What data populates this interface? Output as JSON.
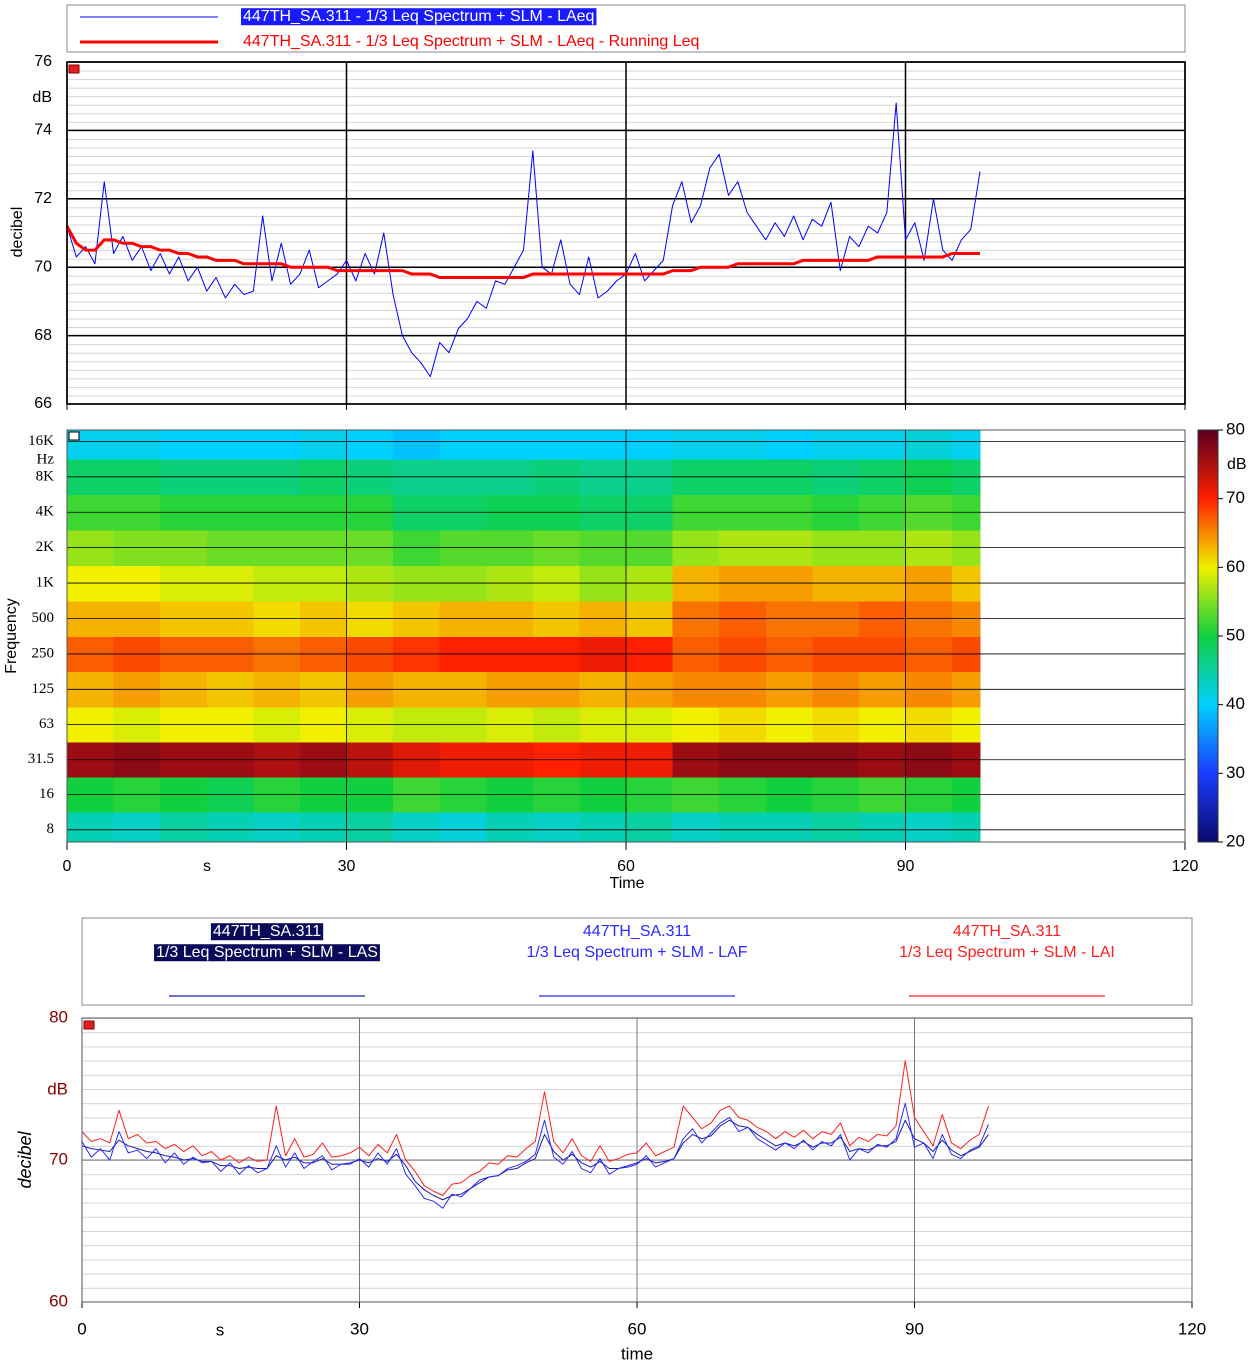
{
  "chart_data": [
    {
      "type": "line",
      "x": [
        0,
        1,
        2,
        3,
        4,
        5,
        6,
        7,
        8,
        9,
        10,
        11,
        12,
        13,
        14,
        15,
        16,
        17,
        18,
        19,
        20,
        21,
        22,
        23,
        24,
        25,
        26,
        27,
        28,
        29,
        30,
        31,
        32,
        33,
        34,
        35,
        36,
        37,
        38,
        39,
        40,
        41,
        42,
        43,
        44,
        45,
        46,
        47,
        48,
        49,
        50,
        51,
        52,
        53,
        54,
        55,
        56,
        57,
        58,
        59,
        60,
        61,
        62,
        63,
        64,
        65,
        66,
        67,
        68,
        69,
        70,
        71,
        72,
        73,
        74,
        75,
        76,
        77,
        78,
        79,
        80,
        81,
        82,
        83,
        84,
        85,
        86,
        87,
        88,
        89,
        90,
        91,
        92,
        93,
        94,
        95,
        96,
        97,
        98
      ],
      "series": [
        {
          "name": "447TH_SA.311 - 1/3 Leq Spectrum + SLM - LAeq",
          "color": "#0000ff",
          "line_width": 1,
          "values": [
            71.2,
            70.3,
            70.6,
            70.1,
            72.5,
            70.4,
            70.9,
            70.2,
            70.6,
            69.9,
            70.4,
            69.8,
            70.3,
            69.6,
            70.0,
            69.3,
            69.7,
            69.1,
            69.5,
            69.2,
            69.3,
            71.5,
            69.6,
            70.7,
            69.5,
            69.8,
            70.5,
            69.4,
            69.6,
            69.8,
            70.2,
            69.6,
            70.4,
            69.8,
            71.0,
            69.2,
            68.0,
            67.5,
            67.2,
            66.8,
            67.8,
            67.5,
            68.2,
            68.5,
            69.0,
            68.8,
            69.6,
            69.5,
            70.0,
            70.5,
            73.4,
            70.0,
            69.8,
            70.8,
            69.5,
            69.2,
            70.3,
            69.1,
            69.3,
            69.6,
            69.8,
            70.4,
            69.6,
            69.9,
            70.2,
            71.8,
            72.5,
            71.3,
            71.8,
            72.9,
            73.3,
            72.1,
            72.5,
            71.6,
            71.2,
            70.8,
            71.3,
            70.9,
            71.5,
            70.8,
            71.4,
            71.2,
            71.9,
            69.9,
            70.9,
            70.6,
            71.2,
            71.0,
            71.6,
            74.8,
            70.8,
            71.3,
            70.2,
            72.0,
            70.5,
            70.2,
            70.8,
            71.1,
            72.8
          ]
        },
        {
          "name": "447TH_SA.311 - 1/3 Leq Spectrum + SLM - LAeq - Running Leq",
          "color": "#ff0000",
          "line_width": 3,
          "values": [
            71.2,
            70.7,
            70.5,
            70.5,
            70.8,
            70.8,
            70.7,
            70.7,
            70.6,
            70.6,
            70.5,
            70.5,
            70.4,
            70.4,
            70.3,
            70.3,
            70.2,
            70.2,
            70.2,
            70.1,
            70.1,
            70.1,
            70.1,
            70.1,
            70.0,
            70.0,
            70.0,
            70.0,
            70.0,
            69.9,
            69.9,
            69.9,
            69.9,
            69.9,
            69.9,
            69.9,
            69.9,
            69.8,
            69.8,
            69.8,
            69.7,
            69.7,
            69.7,
            69.7,
            69.7,
            69.7,
            69.7,
            69.7,
            69.7,
            69.7,
            69.8,
            69.8,
            69.8,
            69.8,
            69.8,
            69.8,
            69.8,
            69.8,
            69.8,
            69.8,
            69.8,
            69.8,
            69.8,
            69.8,
            69.8,
            69.9,
            69.9,
            69.9,
            70.0,
            70.0,
            70.0,
            70.0,
            70.1,
            70.1,
            70.1,
            70.1,
            70.1,
            70.1,
            70.1,
            70.2,
            70.2,
            70.2,
            70.2,
            70.2,
            70.2,
            70.2,
            70.2,
            70.3,
            70.3,
            70.3,
            70.3,
            70.3,
            70.3,
            70.3,
            70.3,
            70.4,
            70.4,
            70.4,
            70.4
          ]
        }
      ],
      "xlim": [
        0,
        120
      ],
      "xticks": [
        0,
        30,
        60,
        90,
        120
      ],
      "ylim": [
        66,
        76
      ],
      "yticks": [
        66,
        68,
        70,
        72,
        74,
        76
      ],
      "y_unit": "dB",
      "y_label": "decibel",
      "grid": true
    },
    {
      "type": "heatmap",
      "x_bins": [
        0,
        5,
        10,
        15,
        20,
        25,
        30,
        35,
        40,
        45,
        50,
        55,
        60,
        65,
        70,
        75,
        80,
        85,
        90,
        95,
        98
      ],
      "y": [
        8,
        16,
        31.5,
        63,
        125,
        250,
        500,
        1000,
        2000,
        4000,
        8000,
        16000
      ],
      "z": [
        [
          44,
          43,
          45,
          44,
          43,
          44,
          45,
          43,
          42,
          44,
          43,
          44,
          45,
          43,
          44,
          44,
          45,
          44,
          43,
          44
        ],
        [
          50,
          51,
          50,
          49,
          51,
          50,
          50,
          52,
          51,
          50,
          51,
          50,
          51,
          52,
          51,
          50,
          51,
          52,
          51,
          50
        ],
        [
          76,
          77,
          76,
          76,
          75,
          76,
          74,
          72,
          71,
          71,
          70,
          71,
          71,
          76,
          77,
          77,
          77,
          76,
          77,
          76
        ],
        [
          60,
          59,
          60,
          60,
          59,
          60,
          59,
          58,
          58,
          59,
          58,
          59,
          59,
          60,
          61,
          60,
          61,
          60,
          61,
          60
        ],
        [
          63,
          64,
          63,
          62,
          63,
          62,
          64,
          63,
          63,
          64,
          64,
          63,
          64,
          65,
          65,
          64,
          65,
          64,
          65,
          64
        ],
        [
          67,
          68,
          67,
          67,
          66,
          67,
          68,
          69,
          70,
          70,
          70,
          71,
          70,
          67,
          68,
          67,
          68,
          68,
          67,
          68
        ],
        [
          63,
          63,
          62,
          62,
          61,
          62,
          61,
          62,
          63,
          63,
          62,
          63,
          62,
          66,
          67,
          66,
          66,
          67,
          66,
          65
        ],
        [
          60,
          60,
          59,
          59,
          58,
          58,
          57,
          56,
          56,
          57,
          58,
          56,
          57,
          63,
          64,
          64,
          63,
          63,
          64,
          62
        ],
        [
          56,
          55,
          55,
          54,
          54,
          54,
          54,
          52,
          53,
          53,
          54,
          53,
          53,
          56,
          57,
          57,
          56,
          56,
          57,
          56
        ],
        [
          52,
          52,
          51,
          51,
          51,
          51,
          51,
          48,
          48,
          49,
          49,
          48,
          48,
          52,
          52,
          52,
          51,
          52,
          53,
          52
        ],
        [
          48,
          48,
          47,
          47,
          47,
          48,
          47,
          46,
          46,
          46,
          47,
          46,
          46,
          48,
          48,
          48,
          47,
          48,
          49,
          48
        ],
        [
          41,
          41,
          40,
          40,
          40,
          41,
          40,
          39,
          40,
          40,
          40,
          40,
          40,
          41,
          41,
          40,
          41,
          41,
          42,
          41
        ]
      ],
      "xlim": [
        0,
        120
      ],
      "xticks": [
        0,
        30,
        60,
        90,
        120
      ],
      "x_unit": "s",
      "x_label": "Time",
      "ylim": [
        6.3,
        20000
      ],
      "log_y": true,
      "yticks": [
        8,
        16,
        31.5,
        63,
        125,
        250,
        500,
        {
          "value": 1000,
          "label": "1K"
        },
        {
          "value": 2000,
          "label": "2K"
        },
        {
          "value": 4000,
          "label": "4K"
        },
        {
          "value": 8000,
          "label": "8K"
        },
        {
          "value": 16000,
          "label": "16K"
        }
      ],
      "y_unit": "Hz",
      "y_label": "Frequency",
      "zlim": [
        20,
        80
      ],
      "zticks": [
        20,
        30,
        40,
        50,
        60,
        70,
        80
      ],
      "colorbar_label": "dB"
    },
    {
      "type": "line",
      "x": [
        0,
        1,
        2,
        3,
        4,
        5,
        6,
        7,
        8,
        9,
        10,
        11,
        12,
        13,
        14,
        15,
        16,
        17,
        18,
        19,
        20,
        21,
        22,
        23,
        24,
        25,
        26,
        27,
        28,
        29,
        30,
        31,
        32,
        33,
        34,
        35,
        36,
        37,
        38,
        39,
        40,
        41,
        42,
        43,
        44,
        45,
        46,
        47,
        48,
        49,
        50,
        51,
        52,
        53,
        54,
        55,
        56,
        57,
        58,
        59,
        60,
        61,
        62,
        63,
        64,
        65,
        66,
        67,
        68,
        69,
        70,
        71,
        72,
        73,
        74,
        75,
        76,
        77,
        78,
        79,
        80,
        81,
        82,
        83,
        84,
        85,
        86,
        87,
        88,
        89,
        90,
        91,
        92,
        93,
        94,
        95,
        96,
        97,
        98
      ],
      "series": [
        {
          "name": "447TH_SA.311",
          "description": "1/3 Leq Spectrum + SLM - LAS",
          "color": "#1c1ca8",
          "line_width": 1,
          "values": [
            71.0,
            70.8,
            70.7,
            70.6,
            71.4,
            71.0,
            70.8,
            70.6,
            70.5,
            70.3,
            70.2,
            70.0,
            70.1,
            69.9,
            69.9,
            69.6,
            69.6,
            69.4,
            69.5,
            69.4,
            69.4,
            70.3,
            70.0,
            70.2,
            69.8,
            69.8,
            70.1,
            69.7,
            69.7,
            69.8,
            70.0,
            69.8,
            70.1,
            69.9,
            70.4,
            69.6,
            68.5,
            67.9,
            67.5,
            67.2,
            67.5,
            67.6,
            68.0,
            68.4,
            68.8,
            68.9,
            69.3,
            69.4,
            69.8,
            70.1,
            71.8,
            70.6,
            70.0,
            70.4,
            69.8,
            69.5,
            69.9,
            69.4,
            69.4,
            69.6,
            69.8,
            70.1,
            69.8,
            69.9,
            70.1,
            71.2,
            71.8,
            71.5,
            71.7,
            72.4,
            72.8,
            72.4,
            72.3,
            71.8,
            71.4,
            71.0,
            71.2,
            71.0,
            71.3,
            70.9,
            71.2,
            71.2,
            71.6,
            70.6,
            70.8,
            70.7,
            71.0,
            71.0,
            71.3,
            72.8,
            71.5,
            71.2,
            70.6,
            71.4,
            70.7,
            70.3,
            70.6,
            70.9,
            71.8
          ]
        },
        {
          "name": "447TH_SA.311",
          "description": "1/3 Leq Spectrum + SLM - LAF",
          "color": "#2b2bff",
          "line_width": 1,
          "values": [
            71.3,
            70.2,
            70.8,
            70.0,
            72.0,
            70.5,
            70.7,
            70.1,
            70.8,
            69.8,
            70.5,
            69.7,
            70.2,
            69.8,
            69.9,
            69.2,
            69.8,
            69.0,
            69.6,
            69.1,
            69.4,
            71.0,
            69.5,
            70.5,
            69.4,
            69.9,
            70.3,
            69.3,
            69.7,
            69.7,
            70.1,
            69.5,
            70.5,
            69.7,
            70.8,
            69.0,
            68.2,
            67.3,
            67.1,
            66.6,
            67.6,
            67.4,
            68.0,
            68.6,
            68.8,
            68.9,
            69.4,
            69.6,
            69.9,
            70.4,
            72.8,
            70.2,
            69.7,
            70.6,
            69.4,
            69.1,
            70.1,
            69.0,
            69.4,
            69.5,
            69.7,
            70.3,
            69.5,
            69.8,
            70.1,
            71.5,
            72.2,
            71.2,
            71.9,
            72.6,
            73.0,
            72.0,
            72.3,
            71.5,
            71.1,
            70.7,
            71.2,
            70.8,
            71.4,
            70.7,
            71.3,
            71.0,
            71.8,
            70.0,
            70.8,
            70.5,
            71.1,
            70.9,
            71.5,
            74.0,
            70.9,
            71.2,
            70.1,
            71.8,
            70.4,
            70.1,
            70.7,
            71.0,
            72.5
          ]
        },
        {
          "name": "447TH_SA.311",
          "description": "1/3 Leq Spectrum + SLM - LAI",
          "color": "#ff2020",
          "line_width": 1,
          "values": [
            72.0,
            71.3,
            71.5,
            71.2,
            73.5,
            71.5,
            71.8,
            71.2,
            71.3,
            70.8,
            71.1,
            70.6,
            71.0,
            70.3,
            70.6,
            70.0,
            70.3,
            69.8,
            70.2,
            69.9,
            70.0,
            73.8,
            70.3,
            71.5,
            70.2,
            70.4,
            71.2,
            70.2,
            70.3,
            70.5,
            70.9,
            70.3,
            71.1,
            70.5,
            71.8,
            70.0,
            69.2,
            68.2,
            67.8,
            67.5,
            68.3,
            68.4,
            68.9,
            69.2,
            69.8,
            69.7,
            70.3,
            70.2,
            70.8,
            71.3,
            74.8,
            71.3,
            70.5,
            71.5,
            70.3,
            69.9,
            71.0,
            69.9,
            70.1,
            70.4,
            70.5,
            71.2,
            70.3,
            70.6,
            70.9,
            73.8,
            73.0,
            72.2,
            72.6,
            73.5,
            73.8,
            73.0,
            72.8,
            72.3,
            72.0,
            71.5,
            72.0,
            71.6,
            72.1,
            71.5,
            72.0,
            71.8,
            72.6,
            71.0,
            71.6,
            71.3,
            71.8,
            71.7,
            72.4,
            77.0,
            73.0,
            72.0,
            71.0,
            73.2,
            71.2,
            70.8,
            71.4,
            71.8,
            73.8
          ]
        }
      ],
      "xlim": [
        0,
        120
      ],
      "xticks": [
        0,
        30,
        60,
        90,
        120
      ],
      "x_unit": "s",
      "x_label": "time",
      "ylim": [
        60,
        80
      ],
      "yticks": [
        60,
        70,
        80
      ],
      "y_unit": "dB",
      "y_label": "decibel",
      "grid": true
    }
  ]
}
